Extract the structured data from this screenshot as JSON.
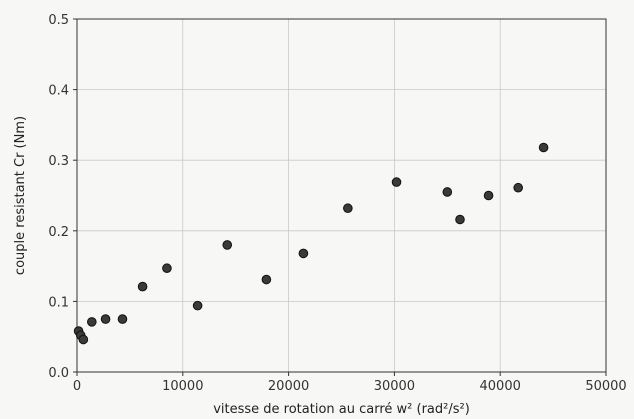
{
  "chart_data": {
    "type": "scatter",
    "xlabel": "vitesse de rotation au carré w² (rad²/s²)",
    "ylabel": "couple resistant Cr (Nm)",
    "xlim": [
      0,
      50000
    ],
    "ylim": [
      0,
      0.5
    ],
    "xticks": [
      0,
      10000,
      20000,
      30000,
      40000,
      50000
    ],
    "yticks": [
      0.0,
      0.1,
      0.2,
      0.3,
      0.4,
      0.5
    ],
    "xtick_labels": [
      "0",
      "10000",
      "20000",
      "30000",
      "40000",
      "50000"
    ],
    "ytick_labels": [
      "0.0",
      "0.1",
      "0.2",
      "0.3",
      "0.4",
      "0.5"
    ],
    "grid": true,
    "series": [
      {
        "marker_color": "#3a3a3a",
        "points": [
          {
            "x": 150,
            "y": 0.058
          },
          {
            "x": 350,
            "y": 0.052
          },
          {
            "x": 600,
            "y": 0.046
          },
          {
            "x": 1400,
            "y": 0.071
          },
          {
            "x": 2700,
            "y": 0.075
          },
          {
            "x": 4300,
            "y": 0.075
          },
          {
            "x": 6200,
            "y": 0.121
          },
          {
            "x": 8500,
            "y": 0.147
          },
          {
            "x": 11400,
            "y": 0.094
          },
          {
            "x": 14200,
            "y": 0.18
          },
          {
            "x": 17900,
            "y": 0.131
          },
          {
            "x": 21400,
            "y": 0.168
          },
          {
            "x": 25600,
            "y": 0.232
          },
          {
            "x": 30200,
            "y": 0.269
          },
          {
            "x": 35000,
            "y": 0.255
          },
          {
            "x": 36200,
            "y": 0.216
          },
          {
            "x": 38900,
            "y": 0.25
          },
          {
            "x": 41700,
            "y": 0.261
          },
          {
            "x": 44100,
            "y": 0.318
          }
        ]
      }
    ]
  }
}
